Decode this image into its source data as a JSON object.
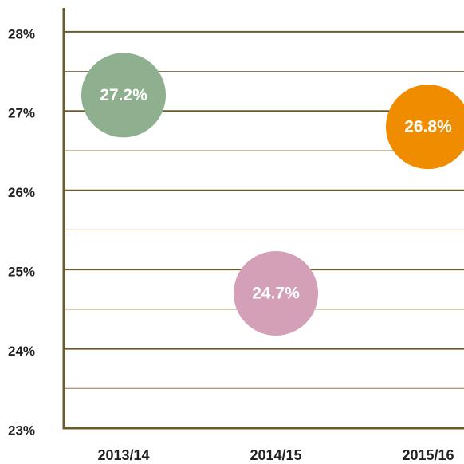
{
  "chart_data": {
    "type": "dot",
    "categories": [
      "2013/14",
      "2014/15",
      "2015/16"
    ],
    "values": [
      27.2,
      24.7,
      26.8
    ],
    "value_labels": [
      "27.2%",
      "24.7%",
      "26.8%"
    ],
    "colors": [
      "#8fb08f",
      "#d4a0b8",
      "#f08c00"
    ],
    "ylim": [
      23,
      28.3
    ],
    "yticks": [
      {
        "value": 23,
        "label": "23%"
      },
      {
        "value": 24,
        "label": "24%"
      },
      {
        "value": 25,
        "label": "25%"
      },
      {
        "value": 26,
        "label": "26%"
      },
      {
        "value": 27,
        "label": "27%"
      },
      {
        "value": 28,
        "label": "28%"
      }
    ],
    "minor_yticks": [
      23.5,
      24.5,
      25.5,
      26.5,
      27.5
    ],
    "grid": true
  }
}
